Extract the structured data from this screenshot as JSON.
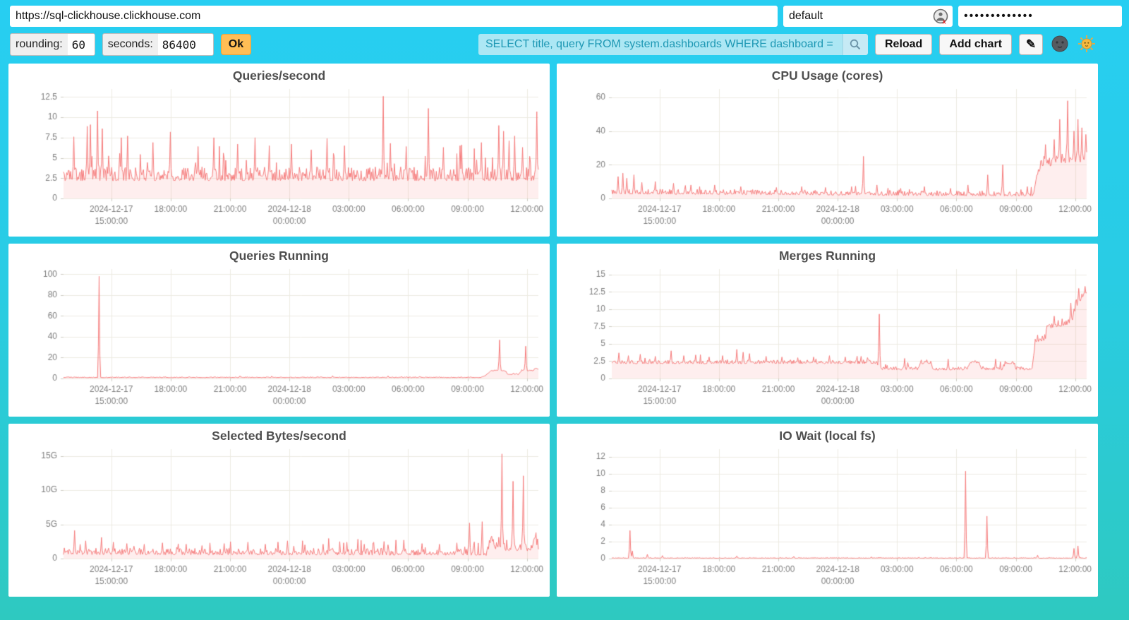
{
  "toolbar": {
    "url": {
      "value": "https://sql-clickhouse.clickhouse.com"
    },
    "user": {
      "value": "default"
    },
    "password": {
      "value": "•••••••••••••"
    },
    "rounding_label": "rounding:",
    "rounding_value": "60",
    "seconds_label": "seconds:",
    "seconds_value": "86400",
    "ok_label": "Ok",
    "query": {
      "value": "SELECT title, query FROM system.dashboards WHERE dashboard = '"
    },
    "reload_label": "Reload",
    "add_chart_label": "Add chart",
    "edit_icon": "✎"
  },
  "colors": {
    "accent_line": "#F57C7C",
    "accent_fill": "rgba(245,124,124,0.13)",
    "grid": "#EDEBE2",
    "tick": "#CFCDC4",
    "tick_label": "#7d7d7d",
    "title": "#4f4f4f",
    "query_bg": "#ACE7F4",
    "query_text": "#1E98B4",
    "ok_bg": "#FFBE55",
    "bg_top": "#27CEF2",
    "bg_bottom": "#2EC9C0"
  },
  "x_axis_common": {
    "range_hours": 24,
    "ticks": [
      {
        "t": 2.417,
        "lines": [
          "2024-12-17",
          "15:00:00"
        ]
      },
      {
        "t": 5.417,
        "lines": [
          "18:00:00"
        ]
      },
      {
        "t": 8.417,
        "lines": [
          "21:00:00"
        ]
      },
      {
        "t": 11.417,
        "lines": [
          "2024-12-18",
          "00:00:00"
        ]
      },
      {
        "t": 14.417,
        "lines": [
          "03:00:00"
        ]
      },
      {
        "t": 17.417,
        "lines": [
          "06:00:00"
        ]
      },
      {
        "t": 20.417,
        "lines": [
          "09:00:00"
        ]
      },
      {
        "t": 23.417,
        "lines": [
          "12:00:00"
        ]
      }
    ]
  },
  "chart_data": [
    {
      "type": "line",
      "title": "Queries/second",
      "xlabel": "",
      "ylabel": "",
      "ylim": [
        0,
        13.5
      ],
      "yticks": [
        [
          "12.5",
          12.5
        ],
        [
          "10",
          10
        ],
        [
          "7.5",
          7.5
        ],
        [
          "5",
          5
        ],
        [
          "2.5",
          2.5
        ],
        [
          "0",
          0
        ]
      ],
      "series": {
        "base": [
          [
            0,
            2.4
          ],
          [
            24,
            2.4
          ]
        ],
        "noise": 1.7,
        "burst": [
          0.08,
          3.2
        ],
        "spikes": [
          [
            0.5,
            7.6
          ],
          [
            1.2,
            8.9
          ],
          [
            1.35,
            9.1
          ],
          [
            1.7,
            10.8
          ],
          [
            1.95,
            8.6
          ],
          [
            2.9,
            7.5
          ],
          [
            3.25,
            7.7
          ],
          [
            4.5,
            6.9
          ],
          [
            5.4,
            8.2
          ],
          [
            6.8,
            6.4
          ],
          [
            7.6,
            7.5
          ],
          [
            8.8,
            6.7
          ],
          [
            9.7,
            7.5
          ],
          [
            10.4,
            6.5
          ],
          [
            11.5,
            6.7
          ],
          [
            12.5,
            6.0
          ],
          [
            13.3,
            7.4
          ],
          [
            14.2,
            6.5
          ],
          [
            16.15,
            12.6
          ],
          [
            16.5,
            6.8
          ],
          [
            17.3,
            6.4
          ],
          [
            18.45,
            11.1
          ],
          [
            19.2,
            6.3
          ],
          [
            20.1,
            6.6
          ],
          [
            21.1,
            6.9
          ],
          [
            22.0,
            9.0
          ],
          [
            22.25,
            8.3
          ],
          [
            22.5,
            7.1
          ],
          [
            22.8,
            7.7
          ],
          [
            23.2,
            6.3
          ],
          [
            23.9,
            10.7
          ]
        ]
      }
    },
    {
      "type": "line",
      "title": "CPU Usage (cores)",
      "xlabel": "",
      "ylabel": "",
      "ylim": [
        0,
        65
      ],
      "yticks": [
        [
          "60",
          60
        ],
        [
          "40",
          40
        ],
        [
          "20",
          20
        ],
        [
          "0",
          0
        ]
      ],
      "series": {
        "base": [
          [
            0,
            3.0
          ],
          [
            9,
            2.6
          ],
          [
            13,
            2.2
          ],
          [
            21.3,
            1.8
          ],
          [
            21.45,
            12
          ],
          [
            21.7,
            20
          ],
          [
            22.2,
            20
          ],
          [
            23,
            22
          ],
          [
            23.6,
            21
          ],
          [
            24,
            25
          ]
        ],
        "noise": 3.0,
        "noise2": [
          21.5,
          6
        ],
        "burst": [
          0.05,
          5
        ],
        "spikes": [
          [
            0.3,
            13
          ],
          [
            0.55,
            15
          ],
          [
            0.75,
            12
          ],
          [
            1.1,
            14
          ],
          [
            1.5,
            9.5
          ],
          [
            2.2,
            10
          ],
          [
            3.1,
            9
          ],
          [
            4.0,
            8
          ],
          [
            5.2,
            8
          ],
          [
            6.5,
            7
          ],
          [
            8.3,
            6.5
          ],
          [
            9.6,
            7
          ],
          [
            10.8,
            6.5
          ],
          [
            12.1,
            7
          ],
          [
            12.7,
            25
          ],
          [
            13.4,
            8
          ],
          [
            14.6,
            6
          ],
          [
            15.8,
            7
          ],
          [
            17.1,
            6
          ],
          [
            18.0,
            8
          ],
          [
            19.0,
            14
          ],
          [
            19.75,
            20
          ],
          [
            21.0,
            7
          ],
          [
            21.9,
            32
          ],
          [
            22.35,
            35
          ],
          [
            22.65,
            47
          ],
          [
            23.05,
            58
          ],
          [
            23.35,
            40
          ],
          [
            23.55,
            47
          ],
          [
            23.75,
            42
          ],
          [
            23.95,
            38
          ]
        ]
      }
    },
    {
      "type": "line",
      "title": "Queries Running",
      "xlabel": "",
      "ylabel": "",
      "ylim": [
        0,
        105
      ],
      "yticks": [
        [
          "100",
          100
        ],
        [
          "80",
          80
        ],
        [
          "60",
          60
        ],
        [
          "40",
          40
        ],
        [
          "20",
          20
        ],
        [
          "0",
          0
        ]
      ],
      "series": {
        "base": [
          [
            0,
            0.9
          ],
          [
            21.1,
            0.9
          ],
          [
            21.35,
            3
          ],
          [
            21.6,
            7.5
          ],
          [
            22.3,
            7.5
          ],
          [
            22.45,
            4
          ],
          [
            23.0,
            4
          ],
          [
            23.15,
            7.5
          ],
          [
            23.75,
            7.5
          ],
          [
            23.85,
            10
          ],
          [
            24,
            9
          ]
        ],
        "noise": 0.7,
        "noise2": [
          21.3,
          1.2
        ],
        "burst": [
          0.03,
          0.9
        ],
        "spikes": [
          [
            1.8,
            98
          ],
          [
            8.9,
            2.4
          ],
          [
            13.6,
            2.6
          ],
          [
            16.4,
            2.4
          ],
          [
            22.05,
            37
          ],
          [
            23.35,
            31
          ]
        ]
      }
    },
    {
      "type": "line",
      "title": "Merges Running",
      "xlabel": "",
      "ylabel": "",
      "ylim": [
        0,
        15.8
      ],
      "yticks": [
        [
          "15",
          15
        ],
        [
          "12.5",
          12.5
        ],
        [
          "10",
          10
        ],
        [
          "7.5",
          7.5
        ],
        [
          "5",
          5
        ],
        [
          "2.5",
          2.5
        ],
        [
          "0",
          0
        ]
      ],
      "series": {
        "base": [
          [
            0,
            2.2
          ],
          [
            13.4,
            2.2
          ],
          [
            13.55,
            1.3
          ],
          [
            15.45,
            1.3
          ],
          [
            15.6,
            2.2
          ],
          [
            16.1,
            2.2
          ],
          [
            16.25,
            1.3
          ],
          [
            17.95,
            1.3
          ],
          [
            18.1,
            2.3
          ],
          [
            18.55,
            2.3
          ],
          [
            18.7,
            1.3
          ],
          [
            19.75,
            1.3
          ],
          [
            19.9,
            2.2
          ],
          [
            20.3,
            2.2
          ],
          [
            20.45,
            1.3
          ],
          [
            21.25,
            1.3
          ],
          [
            21.4,
            5.3
          ],
          [
            21.9,
            5.6
          ],
          [
            22.05,
            7.3
          ],
          [
            22.6,
            7.6
          ],
          [
            23.0,
            7.9
          ],
          [
            23.3,
            8.4
          ],
          [
            23.45,
            10.4
          ],
          [
            23.7,
            11.2
          ],
          [
            24,
            12.5
          ]
        ],
        "noise": 0.55,
        "noise2": [
          21.45,
          1.1
        ],
        "burst": [
          0.05,
          1.0
        ],
        "spikes": [
          [
            0.35,
            3.7
          ],
          [
            0.85,
            3.3
          ],
          [
            1.45,
            3.5
          ],
          [
            2.2,
            3.2
          ],
          [
            3.0,
            4.0
          ],
          [
            3.65,
            3.3
          ],
          [
            4.25,
            3.4
          ],
          [
            4.9,
            3.1
          ],
          [
            5.6,
            3.3
          ],
          [
            6.3,
            4.2
          ],
          [
            6.65,
            3.8
          ],
          [
            6.95,
            3.6
          ],
          [
            7.8,
            3.2
          ],
          [
            8.6,
            3.1
          ],
          [
            9.4,
            3.0
          ],
          [
            10.2,
            3.1
          ],
          [
            11.0,
            3.3
          ],
          [
            11.8,
            3.1
          ],
          [
            12.6,
            3.2
          ],
          [
            13.5,
            9.3
          ],
          [
            14.8,
            2.9
          ],
          [
            15.9,
            2.7
          ],
          [
            17.0,
            2.8
          ],
          [
            19.4,
            2.8
          ],
          [
            22.35,
            9.0
          ],
          [
            23.2,
            10.9
          ],
          [
            23.6,
            13.0
          ],
          [
            23.9,
            13.3
          ]
        ]
      }
    },
    {
      "type": "line",
      "title": "Selected Bytes/second",
      "xlabel": "",
      "ylabel": "",
      "ylim": [
        0,
        16
      ],
      "yticks": [
        [
          "15G",
          15
        ],
        [
          "10G",
          10
        ],
        [
          "5G",
          5
        ],
        [
          "0",
          0
        ]
      ],
      "series": {
        "base": [
          [
            0,
            0.7
          ],
          [
            21.4,
            0.6
          ],
          [
            21.65,
            2.9
          ],
          [
            21.85,
            1.4
          ],
          [
            23.65,
            1.2
          ],
          [
            23.8,
            3.1
          ],
          [
            24,
            1.5
          ]
        ],
        "noise": 1.0,
        "noise2": [
          21.3,
          1.3
        ],
        "burst": [
          0.09,
          1.6
        ],
        "spikes": [
          [
            0.55,
            4.1
          ],
          [
            1.1,
            2.6
          ],
          [
            1.9,
            3.1
          ],
          [
            2.5,
            2.4
          ],
          [
            3.2,
            2.2
          ],
          [
            4.1,
            2.1
          ],
          [
            5.0,
            2.3
          ],
          [
            6.2,
            2.1
          ],
          [
            7.0,
            1.9
          ],
          [
            8.1,
            2.2
          ],
          [
            9.3,
            2.4
          ],
          [
            10.2,
            2.1
          ],
          [
            11.3,
            2.6
          ],
          [
            12.2,
            2.0
          ],
          [
            13.1,
            2.1
          ],
          [
            14.3,
            2.4
          ],
          [
            15.2,
            2.1
          ],
          [
            16.2,
            2.5
          ],
          [
            17.2,
            2.7
          ],
          [
            18.1,
            2.2
          ],
          [
            19.0,
            2.1
          ],
          [
            19.9,
            2.3
          ],
          [
            20.5,
            5.2
          ],
          [
            21.15,
            5.4
          ],
          [
            22.15,
            15.3
          ],
          [
            22.7,
            11.3
          ],
          [
            23.25,
            12.1
          ]
        ]
      }
    },
    {
      "type": "line",
      "title": "IO Wait (local fs)",
      "xlabel": "",
      "ylabel": "",
      "ylim": [
        0,
        12.9
      ],
      "yticks": [
        [
          "12",
          12
        ],
        [
          "10",
          10
        ],
        [
          "8",
          8
        ],
        [
          "6",
          6
        ],
        [
          "4",
          4
        ],
        [
          "2",
          2
        ],
        [
          "0",
          0
        ]
      ],
      "series": {
        "base": [
          [
            0,
            0.05
          ],
          [
            24,
            0.05
          ]
        ],
        "noise": 0.07,
        "spikes": [
          [
            0.9,
            3.3
          ],
          [
            1.05,
            0.9
          ],
          [
            1.8,
            0.5
          ],
          [
            2.55,
            0.35
          ],
          [
            6.3,
            0.3
          ],
          [
            9.2,
            0.25
          ],
          [
            13.1,
            0.2
          ],
          [
            15.5,
            0.15
          ],
          [
            17.9,
            10.3
          ],
          [
            18.95,
            5.0
          ],
          [
            21.5,
            0.4
          ],
          [
            23.35,
            1.2
          ],
          [
            23.55,
            1.5
          ]
        ]
      }
    }
  ]
}
